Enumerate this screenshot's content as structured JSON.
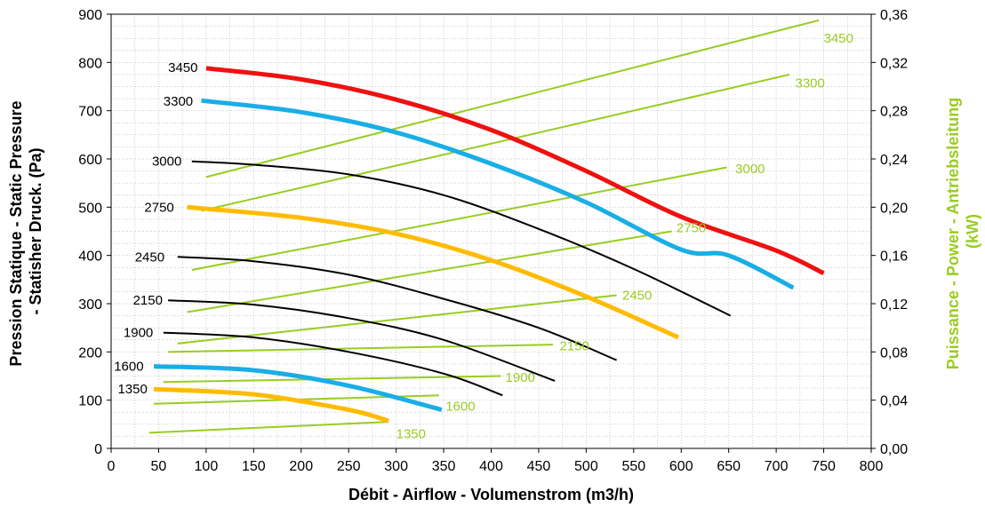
{
  "chart_data": {
    "type": "line",
    "xlabel": "Débit - Airflow - Volumenstrom (m3/h)",
    "ylabel": "Pression Statique - Static Pressure - Statisher Druck. (Pa)",
    "ylabel_lines": [
      "Pression Statique - Static Pressure",
      "- Statisher Druck. (Pa)"
    ],
    "y2label": "Puissance - Power - Antriebsleitung (kW)",
    "y2label_lines": [
      "Puissance - Power - Antriebsleitung",
      "(kW)"
    ],
    "xlim": [
      0,
      800
    ],
    "ylim": [
      0,
      900
    ],
    "y2lim": [
      0,
      0.36
    ],
    "x_ticks": [
      "0",
      "50",
      "100",
      "150",
      "200",
      "250",
      "300",
      "350",
      "400",
      "450",
      "500",
      "550",
      "600",
      "650",
      "700",
      "750",
      "800"
    ],
    "y_ticks": [
      "0",
      "100",
      "200",
      "300",
      "400",
      "500",
      "600",
      "700",
      "800",
      "900"
    ],
    "y2_ticks": [
      "0,00",
      "0,04",
      "0,08",
      "0,12",
      "0,16",
      "0,20",
      "0,24",
      "0,28",
      "0,32",
      "0,36"
    ],
    "grid": true,
    "colors": {
      "red": "#ee1111",
      "blue": "#19aee6",
      "black": "#000000",
      "yellow": "#ffbb00",
      "green": "#99cc22"
    },
    "pressure_series": [
      {
        "name": "3450",
        "color": "red",
        "width": 5,
        "x": [
          100,
          200,
          300,
          400,
          500,
          600,
          700,
          750
        ],
        "y": [
          788,
          765,
          723,
          660,
          575,
          480,
          410,
          363
        ]
      },
      {
        "name": "3300",
        "color": "blue",
        "width": 5,
        "x": [
          95,
          200,
          300,
          400,
          500,
          600,
          650,
          718
        ],
        "y": [
          721,
          697,
          655,
          590,
          510,
          412,
          400,
          333
        ]
      },
      {
        "name": "3000",
        "color": "black",
        "width": 2,
        "x": [
          85,
          150,
          250,
          350,
          450,
          550,
          652
        ],
        "y": [
          595,
          588,
          568,
          525,
          455,
          372,
          275
        ]
      },
      {
        "name": "2750",
        "color": "yellow",
        "width": 5,
        "x": [
          80,
          200,
          300,
          400,
          500,
          597
        ],
        "y": [
          500,
          478,
          445,
          390,
          315,
          230
        ]
      },
      {
        "name": "2450",
        "color": "black",
        "width": 2,
        "x": [
          70,
          150,
          250,
          350,
          450,
          532
        ],
        "y": [
          397,
          388,
          360,
          310,
          250,
          183
        ]
      },
      {
        "name": "2150",
        "color": "black",
        "width": 2,
        "x": [
          60,
          150,
          250,
          350,
          467
        ],
        "y": [
          307,
          298,
          270,
          225,
          140
        ]
      },
      {
        "name": "1900",
        "color": "black",
        "width": 2,
        "x": [
          55,
          150,
          250,
          350,
          412
        ],
        "y": [
          240,
          230,
          200,
          155,
          110
        ]
      },
      {
        "name": "1600",
        "color": "blue",
        "width": 5,
        "x": [
          45,
          150,
          250,
          348
        ],
        "y": [
          170,
          162,
          130,
          80
        ]
      },
      {
        "name": "1350",
        "color": "yellow",
        "width": 5,
        "x": [
          45,
          150,
          250,
          292
        ],
        "y": [
          123,
          112,
          80,
          57
        ]
      }
    ],
    "power_series": [
      {
        "name": "3450",
        "x": [
          100,
          745
        ],
        "y": [
          0.225,
          0.355
        ]
      },
      {
        "name": "3300",
        "x": [
          95,
          714
        ],
        "y": [
          0.197,
          0.31
        ]
      },
      {
        "name": "3000",
        "x": [
          85,
          648
        ],
        "y": [
          0.148,
          0.233
        ]
      },
      {
        "name": "2750",
        "x": [
          80,
          590
        ],
        "y": [
          0.113,
          0.18
        ]
      },
      {
        "name": "2450",
        "x": [
          70,
          532
        ],
        "y": [
          0.087,
          0.127
        ]
      },
      {
        "name": "2150",
        "x": [
          60,
          465
        ],
        "y": [
          0.08,
          0.086
        ]
      },
      {
        "name": "1900",
        "x": [
          55,
          410
        ],
        "y": [
          0.055,
          0.06
        ]
      },
      {
        "name": "1600",
        "x": [
          45,
          345
        ],
        "y": [
          0.037,
          0.044
        ]
      },
      {
        "name": "1350",
        "x": [
          40,
          292
        ],
        "y": [
          0.013,
          0.022
        ]
      }
    ],
    "pressure_label_positions": [
      {
        "label": "3450",
        "x": 60,
        "y": 790
      },
      {
        "label": "3300",
        "x": 55,
        "y": 720
      },
      {
        "label": "3000",
        "x": 43,
        "y": 595
      },
      {
        "label": "2750",
        "x": 35,
        "y": 500
      },
      {
        "label": "2450",
        "x": 25,
        "y": 397
      },
      {
        "label": "2150",
        "x": 23,
        "y": 307
      },
      {
        "label": "1900",
        "x": 13,
        "y": 240
      },
      {
        "label": "1600",
        "x": 3,
        "y": 170
      },
      {
        "label": "1350",
        "x": 7,
        "y": 123
      }
    ],
    "power_label_positions": [
      {
        "label": "3450",
        "x": 750,
        "y": 0.34
      },
      {
        "label": "3300",
        "x": 720,
        "y": 0.303
      },
      {
        "label": "3000",
        "x": 657,
        "y": 0.232
      },
      {
        "label": "2750",
        "x": 595,
        "y": 0.183
      },
      {
        "label": "2450",
        "x": 538,
        "y": 0.127
      },
      {
        "label": "2150",
        "x": 472,
        "y": 0.085
      },
      {
        "label": "1900",
        "x": 415,
        "y": 0.059
      },
      {
        "label": "1600",
        "x": 352,
        "y": 0.035
      },
      {
        "label": "1350",
        "x": 300,
        "y": 0.012
      }
    ]
  }
}
